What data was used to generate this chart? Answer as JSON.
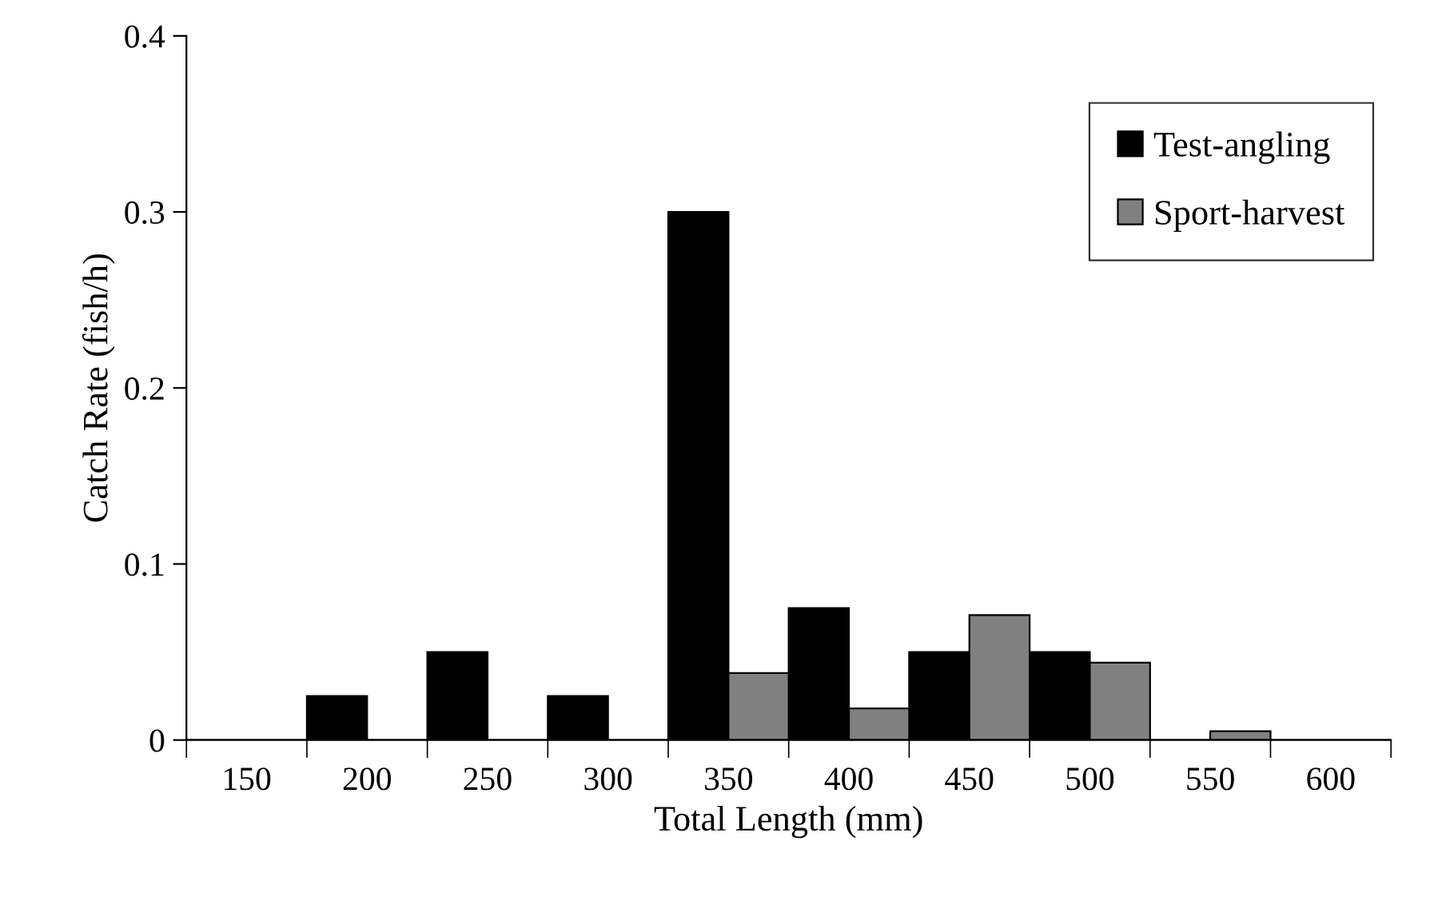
{
  "chart_data": {
    "type": "bar",
    "xlabel": "Total Length (mm)",
    "ylabel": "Catch Rate (fish/h)",
    "categories": [
      "150",
      "200",
      "250",
      "300",
      "350",
      "400",
      "450",
      "500",
      "550",
      "600"
    ],
    "series": [
      {
        "name": "Test-angling",
        "color": "#000000",
        "values": [
          0,
          0.025,
          0.05,
          0.025,
          0.3,
          0.075,
          0.05,
          0.05,
          0,
          0
        ]
      },
      {
        "name": "Sport-harvest",
        "color": "#808080",
        "values": [
          0,
          0,
          0,
          0,
          0.038,
          0.018,
          0.071,
          0.044,
          0.005,
          0
        ]
      }
    ],
    "ylim": [
      0,
      0.4
    ],
    "yticks": [
      {
        "value": 0,
        "label": "0"
      },
      0.1,
      0.2,
      0.3,
      0.4
    ],
    "grid": false,
    "legend": "top right"
  }
}
